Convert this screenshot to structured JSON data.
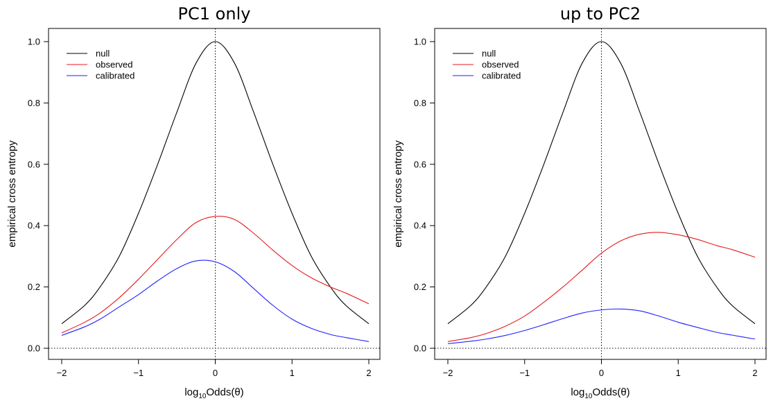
{
  "colors": {
    "null": "#000000",
    "observed": "#e41a1c",
    "calibrated": "#1f1fff"
  },
  "chart_data": [
    {
      "type": "line",
      "title": "PC1 only",
      "xlabel": "log10Odds(θ)",
      "xlabel_parts": {
        "base": "log",
        "sub": "10",
        "rest": "Odds(θ)"
      },
      "ylabel": "empirical cross entropy",
      "xlim": [
        -2,
        2
      ],
      "ylim": [
        0,
        1
      ],
      "xticks": [
        "−2",
        "−1",
        "0",
        "1",
        "2"
      ],
      "yticks": [
        "0.0",
        "0.2",
        "0.4",
        "0.6",
        "0.8",
        "1.0"
      ],
      "reference_lines": {
        "vertical_dotted_at_x": 0,
        "horizontal_dotted_at_y": 0
      },
      "legend_position": "top-left",
      "x": [
        -2.0,
        -1.7,
        -1.5,
        -1.25,
        -1.0,
        -0.75,
        -0.5,
        -0.25,
        0.0,
        0.25,
        0.5,
        0.75,
        1.0,
        1.25,
        1.5,
        1.7,
        2.0
      ],
      "series": [
        {
          "name": "null",
          "color_key": "null",
          "values": [
            0.08,
            0.14,
            0.2,
            0.3,
            0.44,
            0.6,
            0.77,
            0.93,
            1.0,
            0.93,
            0.77,
            0.6,
            0.44,
            0.3,
            0.2,
            0.14,
            0.08
          ]
        },
        {
          "name": "observed",
          "color_key": "observed",
          "values": [
            0.05,
            0.085,
            0.115,
            0.165,
            0.225,
            0.29,
            0.355,
            0.41,
            0.43,
            0.42,
            0.375,
            0.32,
            0.27,
            0.23,
            0.2,
            0.18,
            0.145
          ]
        },
        {
          "name": "calibrated",
          "color_key": "calibrated",
          "values": [
            0.042,
            0.07,
            0.095,
            0.135,
            0.175,
            0.22,
            0.26,
            0.285,
            0.282,
            0.25,
            0.195,
            0.14,
            0.095,
            0.065,
            0.045,
            0.035,
            0.022
          ]
        }
      ]
    },
    {
      "type": "line",
      "title": "up to PC2",
      "xlabel": "log10Odds(θ)",
      "xlabel_parts": {
        "base": "log",
        "sub": "10",
        "rest": "Odds(θ)"
      },
      "ylabel": "empirical cross entropy",
      "xlim": [
        -2,
        2
      ],
      "ylim": [
        0,
        1
      ],
      "xticks": [
        "−2",
        "−1",
        "0",
        "1",
        "2"
      ],
      "yticks": [
        "0.0",
        "0.2",
        "0.4",
        "0.6",
        "0.8",
        "1.0"
      ],
      "reference_lines": {
        "vertical_dotted_at_x": 0,
        "horizontal_dotted_at_y": 0
      },
      "legend_position": "top-left",
      "x": [
        -2.0,
        -1.7,
        -1.5,
        -1.25,
        -1.0,
        -0.75,
        -0.5,
        -0.25,
        0.0,
        0.25,
        0.5,
        0.75,
        1.0,
        1.25,
        1.5,
        1.7,
        2.0
      ],
      "series": [
        {
          "name": "null",
          "color_key": "null",
          "values": [
            0.08,
            0.14,
            0.2,
            0.3,
            0.44,
            0.6,
            0.77,
            0.93,
            1.0,
            0.93,
            0.77,
            0.6,
            0.44,
            0.3,
            0.2,
            0.14,
            0.08
          ]
        },
        {
          "name": "observed",
          "color_key": "observed",
          "values": [
            0.022,
            0.035,
            0.048,
            0.072,
            0.105,
            0.15,
            0.2,
            0.255,
            0.31,
            0.35,
            0.372,
            0.378,
            0.37,
            0.355,
            0.335,
            0.322,
            0.297
          ]
        },
        {
          "name": "calibrated",
          "color_key": "calibrated",
          "values": [
            0.015,
            0.023,
            0.03,
            0.042,
            0.058,
            0.077,
            0.097,
            0.115,
            0.125,
            0.128,
            0.122,
            0.105,
            0.085,
            0.068,
            0.052,
            0.043,
            0.03
          ]
        }
      ]
    }
  ]
}
